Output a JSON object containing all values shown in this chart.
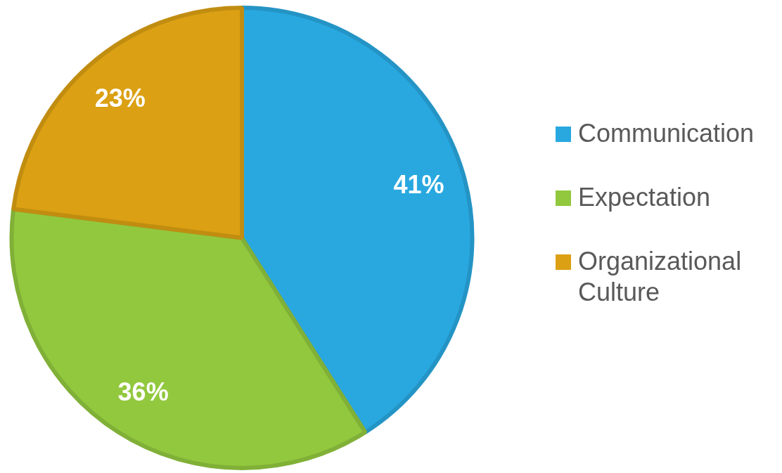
{
  "chart_data": {
    "type": "pie",
    "categories": [
      "Communication",
      "Expectation",
      "Organizational Culture"
    ],
    "values": [
      41,
      36,
      23
    ],
    "colors": [
      "#29a8e0",
      "#92c83e",
      "#dba013"
    ],
    "value_labels": [
      "41%",
      "36%",
      "23%"
    ],
    "legend": "right"
  }
}
